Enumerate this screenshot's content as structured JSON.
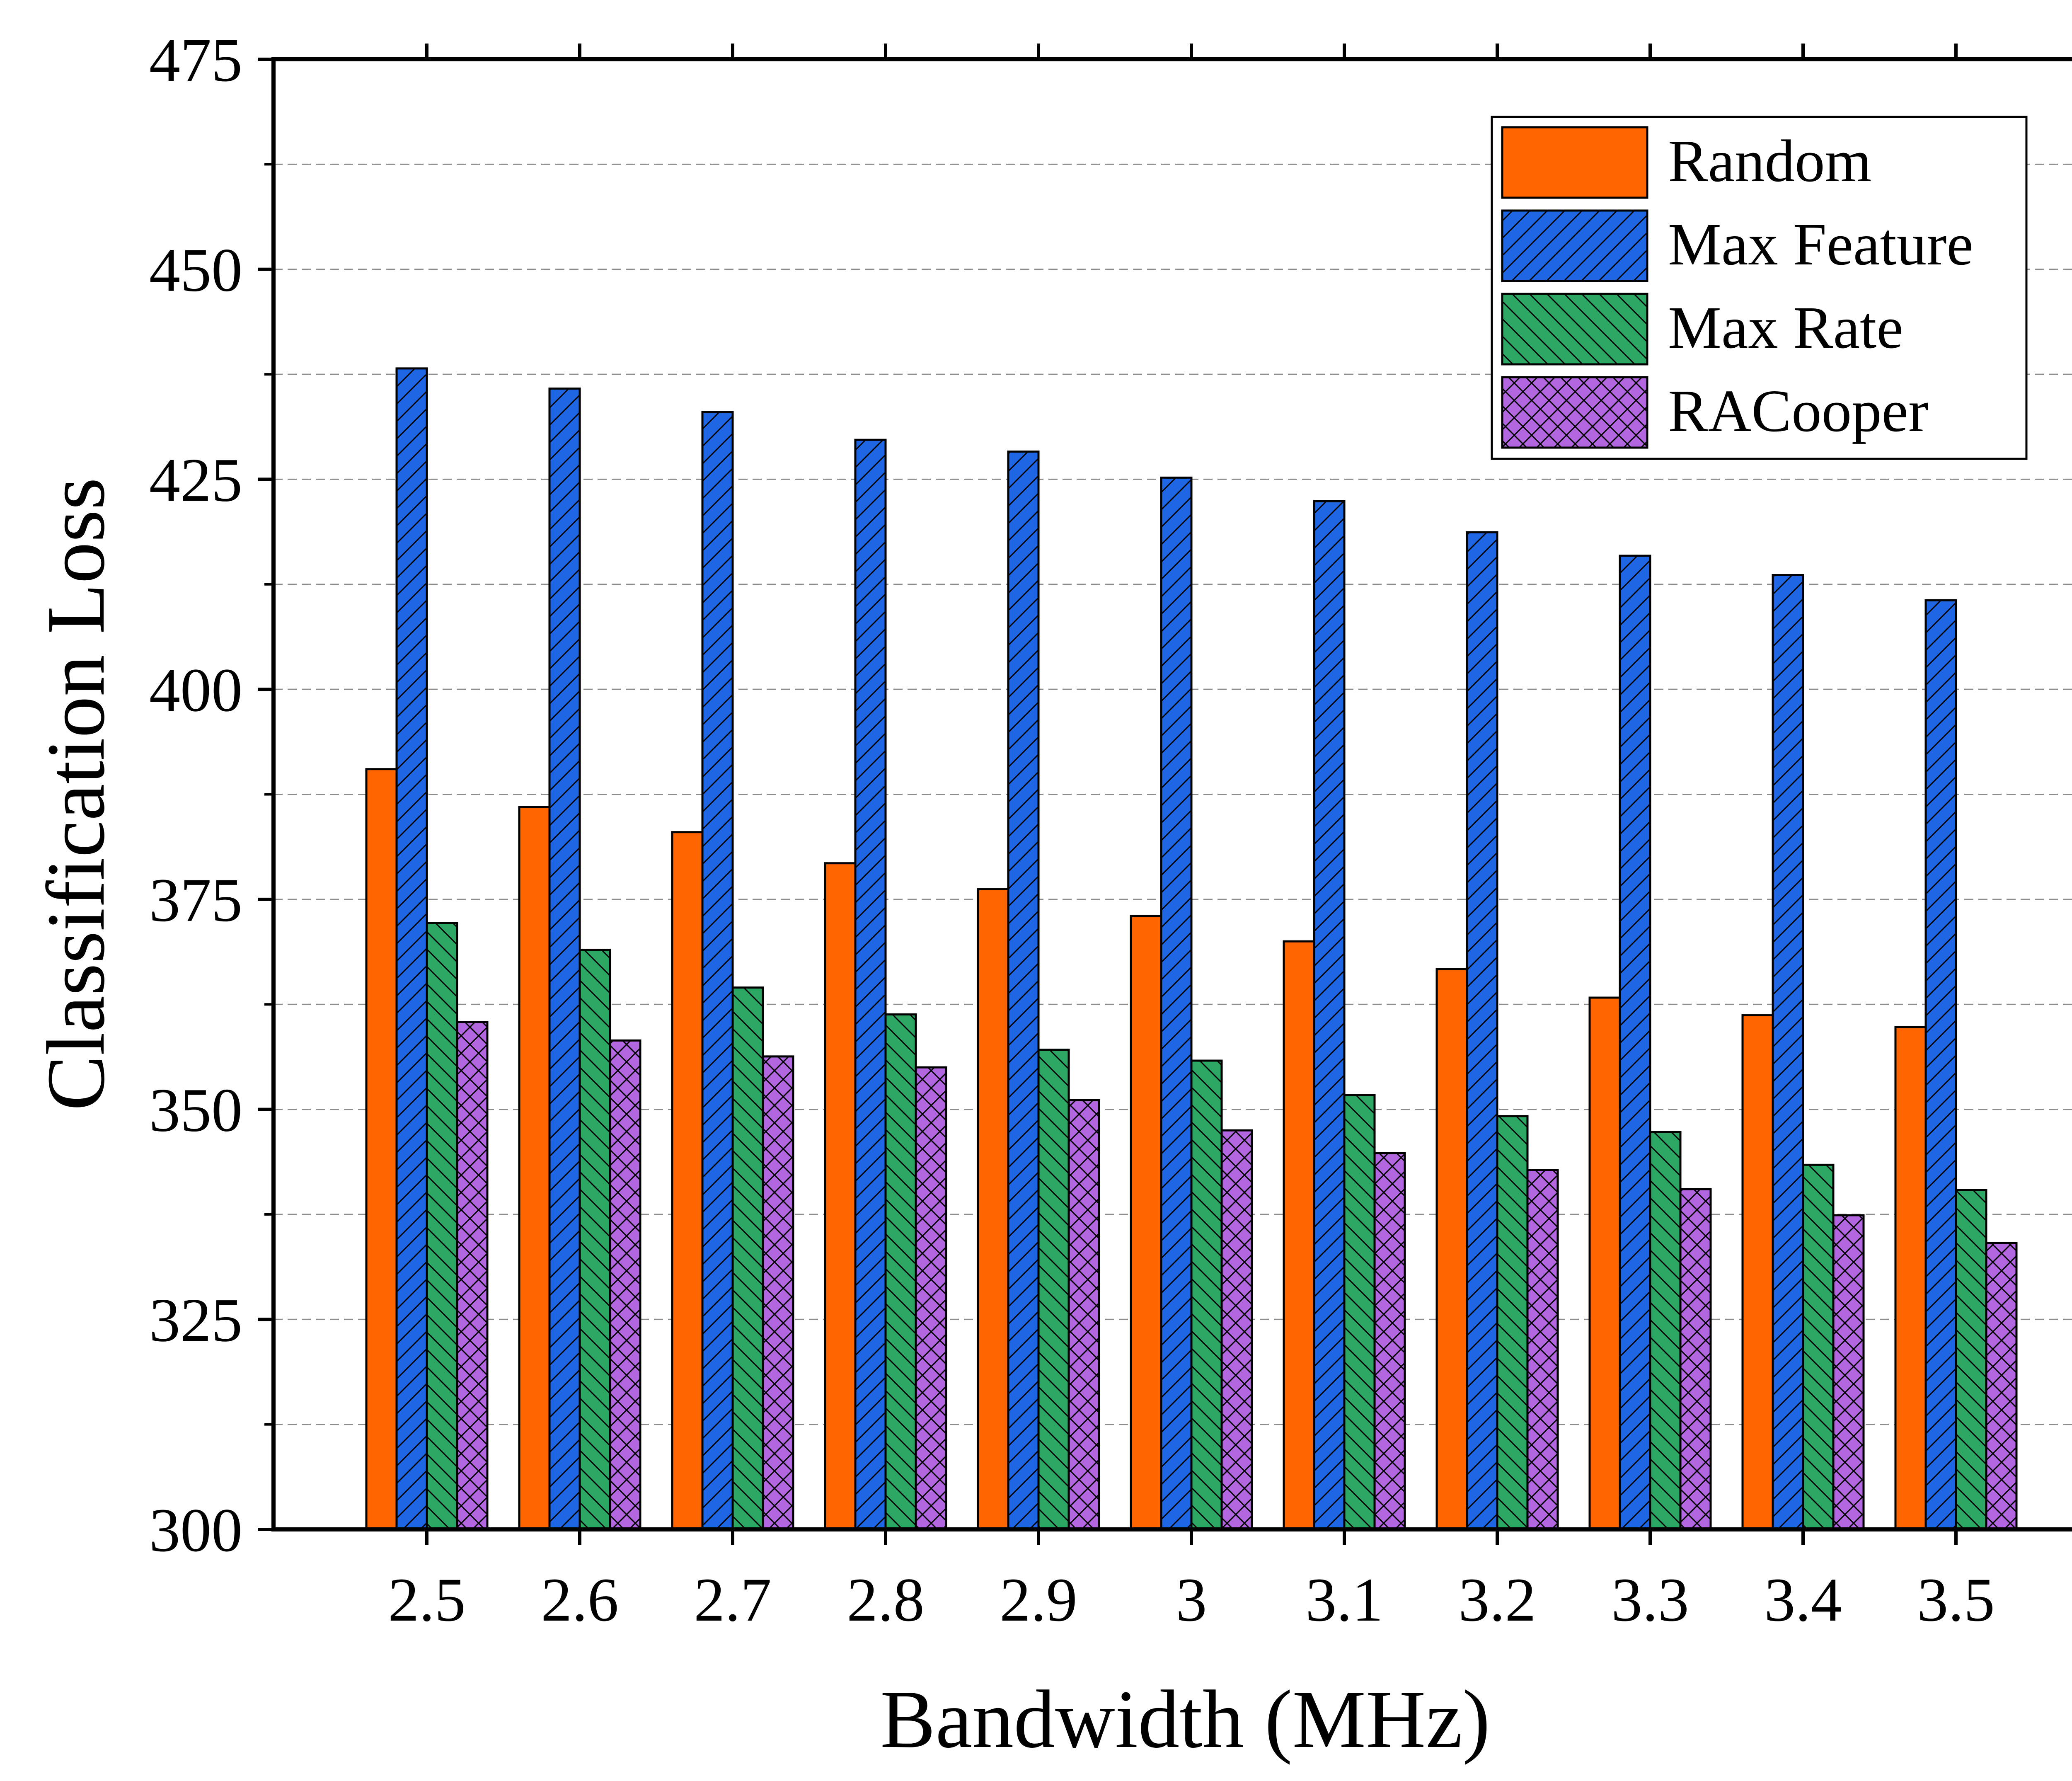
{
  "chart_data": {
    "type": "bar",
    "title": "",
    "xlabel": "Bandwidth (MHz)",
    "ylabel": "Classification Loss",
    "ylim": [
      300,
      475
    ],
    "yticks": [
      "300",
      "325",
      "350",
      "375",
      "400",
      "425",
      "450",
      "475"
    ],
    "grid": "horizontal dashed",
    "legend_position": "top-right",
    "categories": [
      "2.5",
      "2.6",
      "2.7",
      "2.8",
      "2.9",
      "3",
      "3.1",
      "3.2",
      "3.3",
      "3.4",
      "3.5"
    ],
    "series": [
      {
        "name": "Random",
        "color": "#ff6600",
        "pattern": "none",
        "values": [
          390.5,
          386.0,
          383.0,
          379.3,
          376.2,
          373.0,
          370.0,
          366.7,
          363.3,
          361.2,
          359.8
        ]
      },
      {
        "name": "Max Feature",
        "color": "#1f66e5",
        "pattern": "forward-diagonal",
        "values": [
          438.2,
          435.8,
          433.0,
          429.7,
          428.3,
          425.2,
          422.4,
          418.7,
          415.9,
          413.6,
          410.6
        ]
      },
      {
        "name": "Max Rate",
        "color": "#2ca864",
        "pattern": "backward-diagonal",
        "values": [
          372.2,
          369.0,
          364.5,
          361.3,
          357.1,
          355.8,
          351.7,
          349.2,
          347.3,
          343.4,
          340.4
        ]
      },
      {
        "name": "RACooper",
        "color": "#b266e0",
        "pattern": "crosshatch",
        "values": [
          360.4,
          358.2,
          356.3,
          355.0,
          351.1,
          347.5,
          344.8,
          342.8,
          340.5,
          337.4,
          334.1
        ]
      }
    ]
  }
}
